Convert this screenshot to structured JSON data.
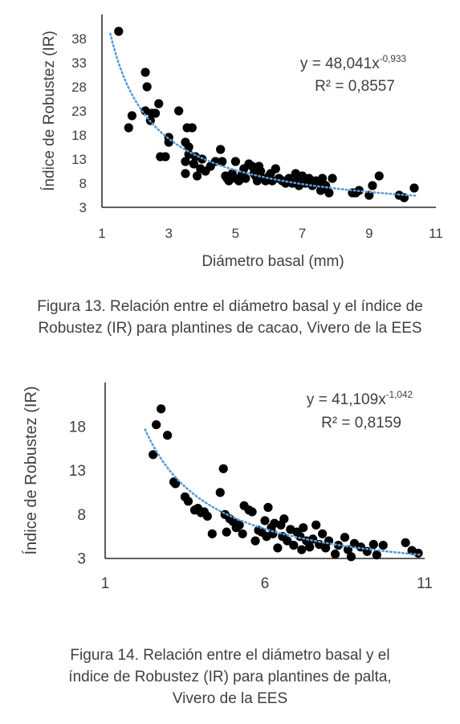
{
  "chart_data": [
    {
      "type": "scatter",
      "title": "",
      "xlabel": "Diámetro basal (mm)",
      "ylabel": "Índice de Robustez (IR)",
      "xlim": [
        1,
        11
      ],
      "ylim": [
        3,
        43
      ],
      "xticks": [
        "1",
        "3",
        "5",
        "7",
        "9",
        "11"
      ],
      "yticks": [
        "3",
        "8",
        "13",
        "18",
        "23",
        "28",
        "33",
        "38"
      ],
      "trendline": {
        "type": "power",
        "a": 48.041,
        "b": -0.933,
        "style": "dotted",
        "color": "#5b9bd5"
      },
      "equation": "y = 48,041x",
      "equation_exp": "-0,933",
      "r2": "R² = 0,8557",
      "point_color": "#000000",
      "points": [
        [
          1.5,
          39.5
        ],
        [
          1.8,
          19.5
        ],
        [
          1.9,
          22
        ],
        [
          2.3,
          31
        ],
        [
          2.35,
          28
        ],
        [
          2.3,
          23
        ],
        [
          2.45,
          21
        ],
        [
          2.5,
          22.5
        ],
        [
          2.6,
          22.5
        ],
        [
          2.7,
          24.5
        ],
        [
          2.75,
          13.5
        ],
        [
          2.9,
          13.5
        ],
        [
          3.0,
          17.5
        ],
        [
          3.0,
          16.5
        ],
        [
          3.3,
          23
        ],
        [
          3.5,
          16.5
        ],
        [
          3.6,
          15.5
        ],
        [
          3.55,
          19.5
        ],
        [
          3.7,
          19.5
        ],
        [
          3.6,
          14
        ],
        [
          3.5,
          12.5
        ],
        [
          3.8,
          13.5
        ],
        [
          3.75,
          12
        ],
        [
          3.85,
          9.5
        ],
        [
          3.95,
          11
        ],
        [
          4.0,
          13
        ],
        [
          3.5,
          10
        ],
        [
          4.1,
          10.5
        ],
        [
          4.25,
          11.5
        ],
        [
          4.4,
          12.5
        ],
        [
          4.55,
          15
        ],
        [
          4.6,
          12.5
        ],
        [
          4.7,
          9.5
        ],
        [
          4.75,
          9
        ],
        [
          4.8,
          8.5
        ],
        [
          5.0,
          12.5
        ],
        [
          4.9,
          10
        ],
        [
          5.0,
          9
        ],
        [
          5.1,
          8.5
        ],
        [
          5.2,
          10
        ],
        [
          5.25,
          11
        ],
        [
          5.3,
          9
        ],
        [
          5.4,
          12
        ],
        [
          5.5,
          11.5
        ],
        [
          5.55,
          10
        ],
        [
          5.6,
          9.5
        ],
        [
          5.65,
          8.5
        ],
        [
          5.7,
          11.5
        ],
        [
          5.75,
          10.5
        ],
        [
          5.8,
          9
        ],
        [
          5.9,
          8.5
        ],
        [
          6.0,
          9.5
        ],
        [
          6.05,
          10
        ],
        [
          6.1,
          8.5
        ],
        [
          6.2,
          11
        ],
        [
          6.3,
          9
        ],
        [
          6.4,
          8.5
        ],
        [
          6.5,
          8
        ],
        [
          6.6,
          9
        ],
        [
          6.7,
          8
        ],
        [
          6.8,
          10
        ],
        [
          6.85,
          8.5
        ],
        [
          6.9,
          7.5
        ],
        [
          7.0,
          9.5
        ],
        [
          7.1,
          8
        ],
        [
          7.2,
          9
        ],
        [
          7.3,
          7.5
        ],
        [
          7.4,
          8.5
        ],
        [
          7.5,
          8
        ],
        [
          7.55,
          6.5
        ],
        [
          7.6,
          9
        ],
        [
          7.7,
          7.5
        ],
        [
          7.8,
          6
        ],
        [
          7.9,
          9
        ],
        [
          8.5,
          6
        ],
        [
          8.6,
          6
        ],
        [
          8.7,
          6.5
        ],
        [
          9.0,
          5.5
        ],
        [
          9.1,
          7.5
        ],
        [
          9.3,
          9.5
        ],
        [
          9.9,
          5.5
        ],
        [
          10.05,
          5
        ],
        [
          10.35,
          7
        ]
      ]
    },
    {
      "type": "scatter",
      "title": "",
      "xlabel": "Diámetro basal (mm)",
      "ylabel": "Índice de Robustez (IR)",
      "xlim": [
        1,
        11
      ],
      "ylim": [
        3,
        23
      ],
      "xticks": [
        "1",
        "6",
        "11"
      ],
      "yticks": [
        "3",
        "8",
        "13",
        "18"
      ],
      "trendline": {
        "type": "power",
        "a": 41.109,
        "b": -1.042,
        "style": "dotted",
        "color": "#5b9bd5"
      },
      "equation": "y = 41,109x",
      "equation_exp": "-1,042",
      "r2": "R² = 0,8159",
      "point_color": "#000000",
      "points": [
        [
          2.5,
          14.8
        ],
        [
          2.6,
          18.2
        ],
        [
          2.75,
          20
        ],
        [
          2.95,
          17
        ],
        [
          3.15,
          11.7
        ],
        [
          3.2,
          11.5
        ],
        [
          3.5,
          10
        ],
        [
          3.6,
          9.5
        ],
        [
          3.8,
          8.5
        ],
        [
          3.9,
          8.7
        ],
        [
          4.0,
          8.2
        ],
        [
          4.1,
          8.3
        ],
        [
          4.2,
          7.8
        ],
        [
          4.35,
          5.8
        ],
        [
          4.6,
          10.5
        ],
        [
          4.7,
          13.2
        ],
        [
          4.75,
          8
        ],
        [
          4.8,
          6
        ],
        [
          4.9,
          7.5
        ],
        [
          5.0,
          7.2
        ],
        [
          5.1,
          6.5
        ],
        [
          5.2,
          6.8
        ],
        [
          5.3,
          5.8
        ],
        [
          5.35,
          9
        ],
        [
          5.5,
          8.5
        ],
        [
          5.6,
          8.3
        ],
        [
          5.7,
          5
        ],
        [
          5.8,
          6.2
        ],
        [
          5.9,
          6
        ],
        [
          6.0,
          7.3
        ],
        [
          6.05,
          5.5
        ],
        [
          6.1,
          8.8
        ],
        [
          6.2,
          6.5
        ],
        [
          6.25,
          5.8
        ],
        [
          6.3,
          7
        ],
        [
          6.4,
          4.2
        ],
        [
          6.5,
          6.8
        ],
        [
          6.55,
          5.5
        ],
        [
          6.6,
          7.5
        ],
        [
          6.7,
          5
        ],
        [
          6.8,
          6.3
        ],
        [
          6.9,
          4.5
        ],
        [
          7.0,
          6
        ],
        [
          7.1,
          5.5
        ],
        [
          7.15,
          4
        ],
        [
          7.2,
          6.5
        ],
        [
          7.3,
          5
        ],
        [
          7.4,
          4.3
        ],
        [
          7.5,
          5.2
        ],
        [
          7.6,
          6.8
        ],
        [
          7.7,
          4.6
        ],
        [
          7.8,
          5.8
        ],
        [
          7.9,
          4.2
        ],
        [
          8.0,
          5
        ],
        [
          8.2,
          3.5
        ],
        [
          8.3,
          4.5
        ],
        [
          8.5,
          5.4
        ],
        [
          8.6,
          4
        ],
        [
          8.7,
          3.2
        ],
        [
          8.8,
          4.7
        ],
        [
          9.0,
          4.3
        ],
        [
          9.2,
          3.8
        ],
        [
          9.4,
          4.6
        ],
        [
          9.5,
          3.4
        ],
        [
          9.7,
          4.5
        ],
        [
          10.4,
          4.8
        ],
        [
          10.6,
          3.9
        ],
        [
          10.8,
          3.6
        ]
      ]
    }
  ],
  "captions": {
    "fig13": [
      "Figura 13. Relación entre el diámetro basal y el índice de",
      "Robustez (IR) para plantines de cacao, Vivero de la EES"
    ],
    "fig14": [
      "Figura 14. Relación entre el diámetro basal y el",
      "índice de Robustez (IR) para plantines de palta,",
      "Vivero de la EES"
    ]
  }
}
